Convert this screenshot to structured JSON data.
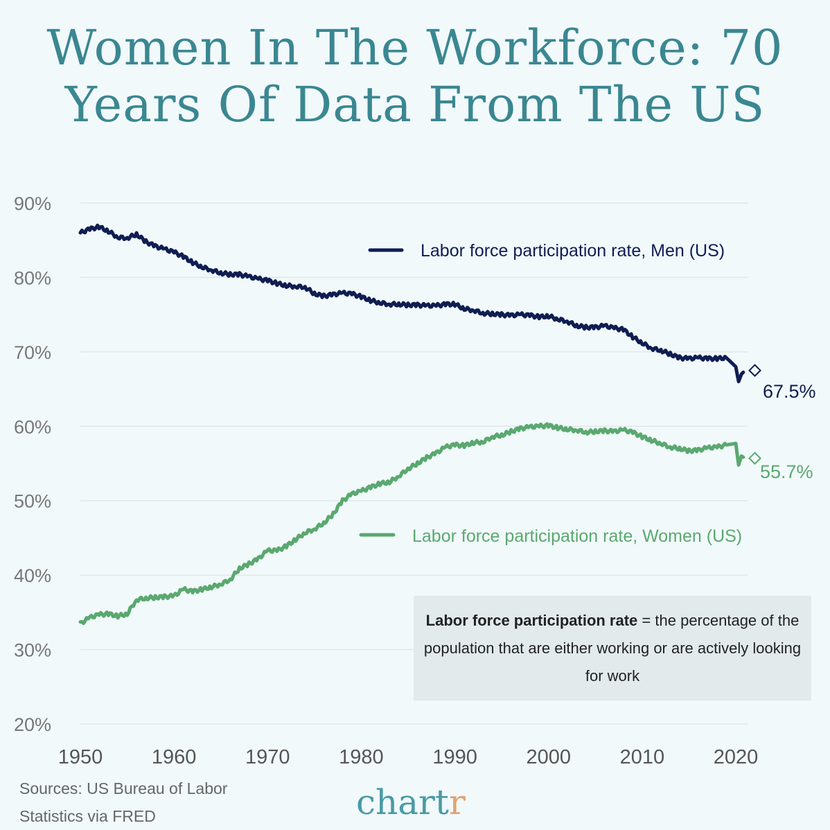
{
  "title": "Women In The Workforce: 70 Years Of Data From The US",
  "chart_data": {
    "type": "line",
    "title": "Women In The Workforce: 70 Years Of Data From The US",
    "xlabel": "",
    "ylabel": "",
    "xlim": [
      1950,
      2021
    ],
    "ylim": [
      20,
      90
    ],
    "y_ticks": [
      "20%",
      "30%",
      "40%",
      "50%",
      "60%",
      "70%",
      "80%",
      "90%"
    ],
    "x_ticks": [
      "1950",
      "1960",
      "1970",
      "1980",
      "1990",
      "2000",
      "2010",
      "2020"
    ],
    "grid": true,
    "series": [
      {
        "name": "Labor force participation rate, Men (US)",
        "color": "#0f1d52",
        "x": [
          1950,
          1951,
          1952,
          1953,
          1954,
          1955,
          1956,
          1957,
          1958,
          1959,
          1960,
          1961,
          1962,
          1963,
          1964,
          1965,
          1966,
          1967,
          1968,
          1969,
          1970,
          1971,
          1972,
          1973,
          1974,
          1975,
          1976,
          1977,
          1978,
          1979,
          1980,
          1981,
          1982,
          1983,
          1984,
          1985,
          1986,
          1987,
          1988,
          1989,
          1990,
          1991,
          1992,
          1993,
          1994,
          1995,
          1996,
          1997,
          1998,
          1999,
          2000,
          2001,
          2002,
          2003,
          2004,
          2005,
          2006,
          2007,
          2008,
          2009,
          2010,
          2011,
          2012,
          2013,
          2014,
          2015,
          2016,
          2017,
          2018,
          2019,
          2020,
          2020.3,
          2020.6,
          2021
        ],
        "values": [
          86.0,
          86.5,
          86.8,
          86.2,
          85.4,
          85.3,
          85.8,
          84.8,
          84.2,
          83.8,
          83.4,
          82.8,
          82.0,
          81.4,
          81.0,
          80.6,
          80.4,
          80.4,
          80.1,
          79.8,
          79.6,
          79.2,
          78.9,
          78.8,
          78.7,
          77.8,
          77.5,
          77.7,
          77.9,
          77.8,
          77.4,
          76.9,
          76.6,
          76.4,
          76.4,
          76.3,
          76.3,
          76.2,
          76.2,
          76.4,
          76.4,
          75.8,
          75.6,
          75.2,
          75.1,
          75.0,
          74.9,
          75.0,
          74.9,
          74.7,
          74.8,
          74.4,
          74.1,
          73.5,
          73.3,
          73.3,
          73.5,
          73.2,
          73.0,
          72.0,
          71.2,
          70.5,
          70.2,
          69.7,
          69.2,
          69.1,
          69.2,
          69.1,
          69.1,
          69.2,
          68.0,
          66.0,
          67.0,
          67.5
        ]
      },
      {
        "name": "Labor force participation rate, Women (US)",
        "color": "#5aa86f",
        "x": [
          1950,
          1951,
          1952,
          1953,
          1954,
          1955,
          1956,
          1957,
          1958,
          1959,
          1960,
          1961,
          1962,
          1963,
          1964,
          1965,
          1966,
          1967,
          1968,
          1969,
          1970,
          1971,
          1972,
          1973,
          1974,
          1975,
          1976,
          1977,
          1978,
          1979,
          1980,
          1981,
          1982,
          1983,
          1984,
          1985,
          1986,
          1987,
          1988,
          1989,
          1990,
          1991,
          1992,
          1993,
          1994,
          1995,
          1996,
          1997,
          1998,
          1999,
          2000,
          2001,
          2002,
          2003,
          2004,
          2005,
          2006,
          2007,
          2008,
          2009,
          2010,
          2011,
          2012,
          2013,
          2014,
          2015,
          2016,
          2017,
          2018,
          2019,
          2020,
          2020.3,
          2020.6,
          2021
        ],
        "values": [
          33.5,
          34.3,
          34.7,
          34.8,
          34.5,
          34.8,
          36.7,
          36.9,
          37.0,
          37.1,
          37.2,
          38.1,
          37.8,
          38.1,
          38.4,
          38.8,
          39.4,
          40.9,
          41.5,
          42.2,
          43.3,
          43.3,
          43.9,
          44.8,
          45.7,
          46.2,
          47.0,
          48.2,
          50.0,
          50.9,
          51.3,
          51.8,
          52.3,
          52.5,
          53.3,
          54.3,
          55.0,
          55.8,
          56.4,
          57.2,
          57.5,
          57.4,
          57.8,
          57.9,
          58.6,
          58.8,
          59.3,
          59.7,
          59.9,
          60.0,
          60.1,
          59.8,
          59.6,
          59.5,
          59.2,
          59.3,
          59.4,
          59.3,
          59.5,
          59.2,
          58.6,
          58.1,
          57.7,
          57.2,
          57.0,
          56.7,
          56.8,
          57.1,
          57.2,
          57.5,
          57.7,
          54.8,
          56.0,
          55.7
        ]
      }
    ],
    "end_labels": [
      "67.5%",
      "55.7%"
    ]
  },
  "definition": {
    "term": "Labor force participation rate",
    "rest": "= the percentage of the population that are either working or are actively looking for work"
  },
  "source_text": "Sources: US Bureau of Labor Statistics via FRED",
  "brand": {
    "main": "chart",
    "accent": "r"
  }
}
